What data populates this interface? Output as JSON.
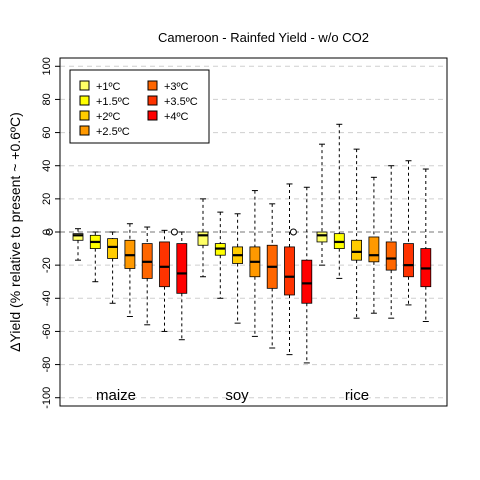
{
  "chart_data": {
    "type": "boxplot",
    "title": "Cameroon - Rainfed Yield - w/o CO2",
    "ylabel": "ΔYield (% relative to present ~ +0.6ºC)",
    "xlabel": "",
    "ylim": [
      -105,
      105
    ],
    "yticks": [
      -100,
      -80,
      -60,
      -40,
      -20,
      0,
      20,
      40,
      60,
      80,
      100
    ],
    "grid": "horizontal dashed",
    "legend_position": "top-left",
    "crops": [
      "maize",
      "soy",
      "rice"
    ],
    "series": [
      {
        "name": "+1ºC",
        "color": "#FFFF66"
      },
      {
        "name": "+1.5ºC",
        "color": "#FFFF00"
      },
      {
        "name": "+2ºC",
        "color": "#FFCC00"
      },
      {
        "name": "+2.5ºC",
        "color": "#FF9900"
      },
      {
        "name": "+3ºC",
        "color": "#FF6600"
      },
      {
        "name": "+3.5ºC",
        "color": "#FF3300"
      },
      {
        "name": "+4ºC",
        "color": "#FF0000"
      }
    ],
    "groups": [
      {
        "crop": "maize",
        "boxes": [
          {
            "series": "+1ºC",
            "min": -17,
            "q1": -5,
            "median": -2,
            "q3": -1,
            "max": 2
          },
          {
            "series": "+1.5ºC",
            "min": -30,
            "q1": -10,
            "median": -6,
            "q3": -2,
            "max": 0
          },
          {
            "series": "+2ºC",
            "min": -43,
            "q1": -16,
            "median": -9,
            "q3": -4,
            "max": 0
          },
          {
            "series": "+2.5ºC",
            "min": -51,
            "q1": -22,
            "median": -14,
            "q3": -5,
            "max": 5
          },
          {
            "series": "+3ºC",
            "min": -56,
            "q1": -28,
            "median": -18,
            "q3": -7,
            "max": 3
          },
          {
            "series": "+3.5ºC",
            "min": -60,
            "q1": -33,
            "median": -21,
            "q3": -6,
            "max": 1
          },
          {
            "series": "+4ºC",
            "min": -65,
            "q1": -37,
            "median": -25,
            "q3": -7,
            "max": 0
          }
        ]
      },
      {
        "crop": "soy",
        "boxes": [
          {
            "series": "+1ºC",
            "min": -27,
            "q1": -8,
            "median": -2,
            "q3": 0,
            "max": 20
          },
          {
            "series": "+1.5ºC",
            "min": -40,
            "q1": -14,
            "median": -10,
            "q3": -7,
            "max": 12
          },
          {
            "series": "+2ºC",
            "min": -55,
            "q1": -19,
            "median": -14,
            "q3": -9,
            "max": 11
          },
          {
            "series": "+2.5ºC",
            "min": -63,
            "q1": -27,
            "median": -18,
            "q3": -9,
            "max": 25
          },
          {
            "series": "+3ºC",
            "min": -70,
            "q1": -34,
            "median": -21,
            "q3": -8,
            "max": 17
          },
          {
            "series": "+3.5ºC",
            "min": -74,
            "q1": -38,
            "median": -27,
            "q3": -9,
            "max": 29
          },
          {
            "series": "+4ºC",
            "min": -79,
            "q1": -43,
            "median": -31,
            "q3": -17,
            "max": 27
          }
        ]
      },
      {
        "crop": "rice",
        "boxes": [
          {
            "series": "+1ºC",
            "min": -20,
            "q1": -6,
            "median": -2,
            "q3": 0,
            "max": 53
          },
          {
            "series": "+1.5ºC",
            "min": -28,
            "q1": -10,
            "median": -6,
            "q3": -1,
            "max": 65
          },
          {
            "series": "+2ºC",
            "min": -52,
            "q1": -17,
            "median": -12,
            "q3": -5,
            "max": 50
          },
          {
            "series": "+2.5ºC",
            "min": -49,
            "q1": -18,
            "median": -14,
            "q3": -3,
            "max": 33
          },
          {
            "series": "+3ºC",
            "min": -52,
            "q1": -23,
            "median": -16,
            "q3": -6,
            "max": 40
          },
          {
            "series": "+3.5ºC",
            "min": -44,
            "q1": -27,
            "median": -20,
            "q3": -7,
            "max": 43
          },
          {
            "series": "+4ºC",
            "min": -54,
            "q1": -33,
            "median": -22,
            "q3": -10,
            "max": 38
          }
        ]
      }
    ]
  }
}
